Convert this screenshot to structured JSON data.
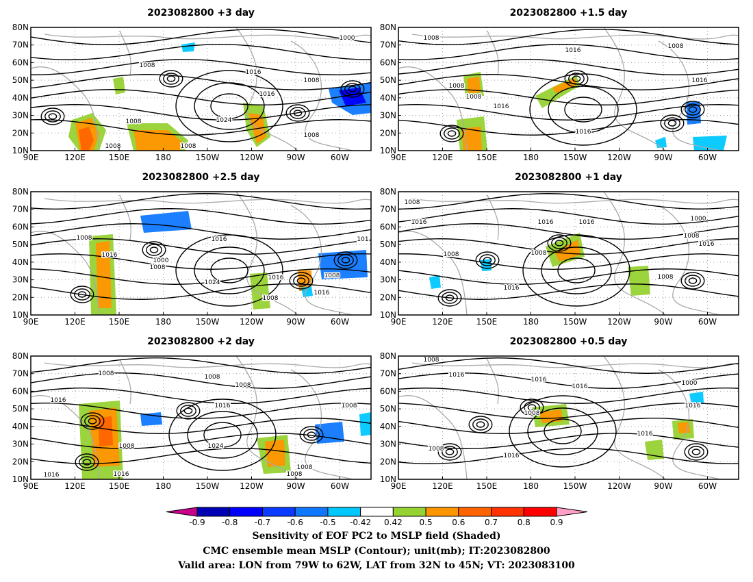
{
  "panels": [
    {
      "title": "2023082800 +3 day",
      "contours": [
        "1008",
        "1016",
        "1024",
        "1008",
        "1008",
        "1008",
        "1008",
        "1000",
        "1016",
        "1008"
      ]
    },
    {
      "title": "2023082800 +1.5 day",
      "contours": [
        "1008",
        "1016",
        "1008",
        "1008",
        "1008",
        "1016",
        "1016",
        "1016"
      ]
    },
    {
      "title": "2023082800 +2.5 day",
      "contours": [
        "1008",
        "1016",
        "1000",
        "1008",
        "1016",
        "1024",
        "1008",
        "1016",
        "1008",
        "1016",
        "101"
      ]
    },
    {
      "title": "2023082800 +1 day",
      "contours": [
        "1008",
        "1016",
        "1016",
        "1016",
        "1008",
        "1008",
        "1016",
        "1000",
        "1008",
        "1016",
        "1008"
      ]
    },
    {
      "title": "2023082800 +2 day",
      "contours": [
        "1008",
        "1008",
        "1008",
        "1016",
        "1016",
        "1024",
        "1008",
        "1016",
        "1016",
        "1008",
        "1008",
        "1008"
      ]
    },
    {
      "title": "2023082800 +0.5 day",
      "contours": [
        "1008",
        "1016",
        "1016",
        "1016",
        "1008",
        "1016",
        "1016",
        "1000",
        "1016",
        "1008"
      ]
    }
  ],
  "lat_labels": [
    "80N",
    "70N",
    "60N",
    "50N",
    "40N",
    "30N",
    "20N",
    "10N"
  ],
  "lon_labels": [
    "90E",
    "120E",
    "150E",
    "180",
    "150W",
    "120W",
    "90W",
    "60W"
  ],
  "colorbar": {
    "tick_labels": [
      "-0.9",
      "-0.8",
      "-0.7",
      "-0.6",
      "-0.5",
      "-0.42",
      "0.42",
      "0.5",
      "0.6",
      "0.7",
      "0.8",
      "0.9"
    ],
    "colors": [
      "#c8008c",
      "#0000b4",
      "#0000ff",
      "#0a3cff",
      "#0f78ff",
      "#00c8ff",
      "#ffffff",
      "#96d232",
      "#ff9600",
      "#ff6400",
      "#ff3200",
      "#ff0000",
      "#ffa0c8"
    ]
  },
  "caption": {
    "line1": "Sensitivity of EOF PC2 to MSLP field (Shaded)",
    "line2": "CMC ensemble mean MSLP (Contour); unit(mb); IT:2023082800",
    "line3": "Valid area: LON from 79W to 62W, LAT from 32N to 45N; VT: 2023083100"
  }
}
